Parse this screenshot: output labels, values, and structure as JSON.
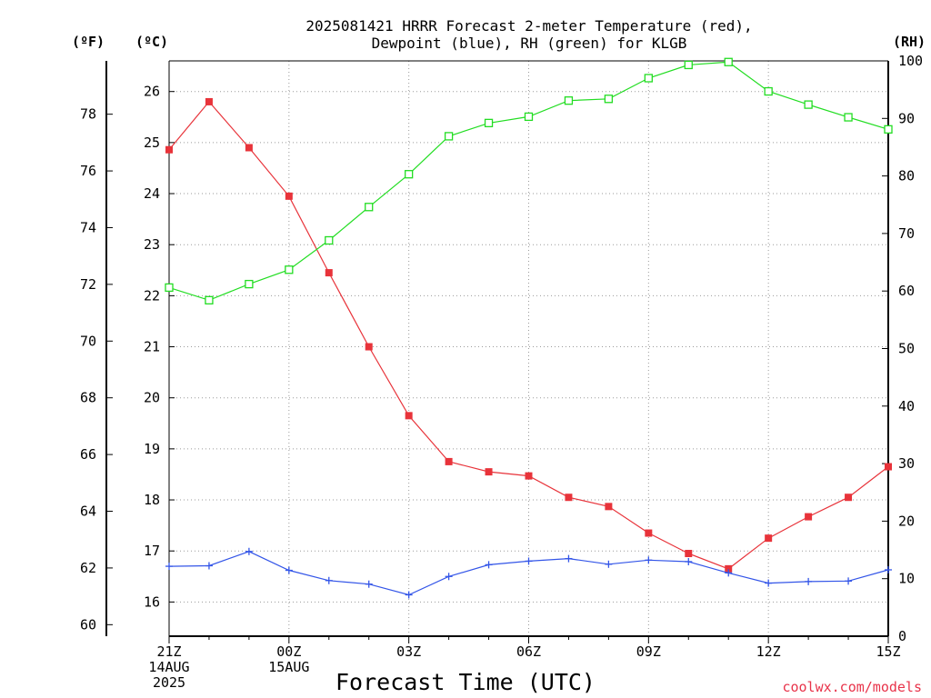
{
  "chart_data": {
    "type": "line",
    "title_lines": [
      "2025081421 HRRR Forecast 2-meter Temperature (red),",
      "Dewpoint (blue), RH (green) for KLGB"
    ],
    "xlabel": "Forecast Time (UTC)",
    "credit": "coolwx.com/models",
    "units": {
      "fahrenheit": "(ºF)",
      "celsius": "(ºC)",
      "rh": "(RH)"
    },
    "x_tick_labels": [
      {
        "hour": 0,
        "lines": [
          "21Z",
          "14AUG",
          "2025"
        ]
      },
      {
        "hour": 3,
        "lines": [
          "00Z",
          "15AUG"
        ]
      },
      {
        "hour": 6,
        "lines": [
          "03Z"
        ]
      },
      {
        "hour": 9,
        "lines": [
          "06Z"
        ]
      },
      {
        "hour": 12,
        "lines": [
          "09Z"
        ]
      },
      {
        "hour": 15,
        "lines": [
          "12Z"
        ]
      },
      {
        "hour": 18,
        "lines": [
          "15Z"
        ]
      }
    ],
    "x": [
      "21Z",
      "22Z",
      "23Z",
      "00Z",
      "01Z",
      "02Z",
      "03Z",
      "04Z",
      "05Z",
      "06Z",
      "07Z",
      "08Z",
      "09Z",
      "10Z",
      "11Z",
      "12Z",
      "13Z",
      "14Z",
      "15Z"
    ],
    "xlim": [
      0,
      18
    ],
    "celsius_ticks": [
      16,
      17,
      18,
      19,
      20,
      21,
      22,
      23,
      24,
      25,
      26
    ],
    "fahrenheit_ticks": [
      60,
      62,
      64,
      66,
      68,
      70,
      72,
      74,
      76,
      78
    ],
    "rh_ticks": [
      0,
      10,
      20,
      30,
      40,
      50,
      60,
      70,
      80,
      90,
      100
    ],
    "celsius_range": [
      15.33,
      26.6
    ],
    "rh_range": [
      0,
      100
    ],
    "grid": true,
    "series": [
      {
        "name": "Temperature (red)",
        "axis": "celsius",
        "color": "#e8333a",
        "marker": "filled-square",
        "values": [
          24.86,
          25.8,
          24.9,
          23.95,
          22.45,
          21.0,
          19.65,
          18.75,
          18.55,
          18.47,
          18.05,
          17.87,
          17.35,
          16.95,
          16.65,
          17.25,
          17.67,
          18.05,
          18.65
        ]
      },
      {
        "name": "Dewpoint (blue)",
        "axis": "celsius",
        "color": "#3355e8",
        "marker": "plus",
        "values": [
          16.7,
          16.71,
          16.99,
          16.62,
          16.42,
          16.35,
          16.14,
          16.5,
          16.73,
          16.8,
          16.85,
          16.74,
          16.82,
          16.79,
          16.57,
          16.37,
          16.4,
          16.41,
          16.63
        ]
      },
      {
        "name": "RH (green)",
        "axis": "rh",
        "color": "#22dd22",
        "marker": "open-square",
        "values": [
          60.6,
          58.4,
          61.2,
          63.7,
          68.8,
          74.6,
          80.3,
          86.9,
          89.2,
          90.3,
          93.1,
          93.4,
          97.0,
          99.3,
          99.8,
          94.7,
          92.4,
          90.2,
          88.1
        ]
      }
    ]
  }
}
